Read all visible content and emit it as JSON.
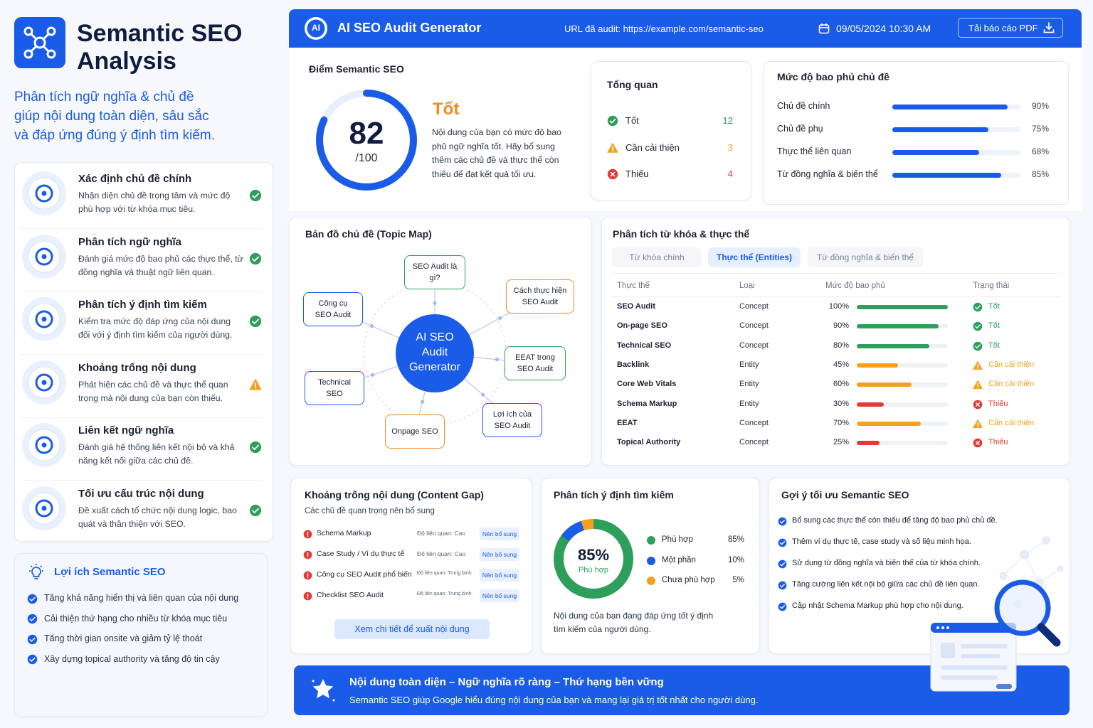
{
  "sidebar": {
    "title": [
      "Semantic SEO",
      "Analysis"
    ],
    "tagline": [
      "Phân tích ngữ nghĩa & chủ đề",
      "giúp nội dung toàn diện, sâu sắc",
      "và đáp ứng đúng ý định tìm kiếm."
    ],
    "features": [
      {
        "title": "Xác định chủ đề chính",
        "description": "Nhận diện chủ đề trọng tâm và mức độ phù hợp với từ khóa mục tiêu.",
        "status": "ok"
      },
      {
        "title": "Phân tích ngữ nghĩa",
        "description": "Đánh giá mức độ bao phủ các thực thể, từ đồng nghĩa và thuật ngữ liên quan.",
        "status": "ok"
      },
      {
        "title": "Phân tích ý định tìm kiếm",
        "description": "Kiểm tra mức độ đáp ứng của nội dung đối với ý định tìm kiếm của người dùng.",
        "status": "ok"
      },
      {
        "title": "Khoảng trống nội dung",
        "description": "Phát hiện các chủ đề và thực thể quan trọng mà nội dung của bạn còn thiếu.",
        "status": "warn"
      },
      {
        "title": "Liên kết ngữ nghĩa",
        "description": "Đánh giá hệ thống liên kết nội bộ và khả năng kết nối giữa các chủ đề.",
        "status": "ok"
      },
      {
        "title": "Tối ưu cấu trúc nội dung",
        "description": "Đề xuất cách tổ chức nội dung logic, bao quát và thân thiện với SEO.",
        "status": "ok"
      }
    ],
    "benefits": {
      "title": "Lợi ích Semantic SEO",
      "items": [
        "Tăng khả năng hiển thị và liên quan của nội dung",
        "Cải thiện thứ hạng cho nhiều từ khóa mục tiêu",
        "Tăng thời gian onsite và giảm tỷ lệ thoát",
        "Xây dựng topical authority và tăng độ tin cậy"
      ]
    }
  },
  "header": {
    "logo": "AI",
    "title": "AI SEO Audit Generator",
    "url_label": "URL đã audit: https://example.com/semantic-seo",
    "datetime": "09/05/2024 10:30 AM",
    "download_button": "Tải báo cáo PDF"
  },
  "score_card": {
    "title": "Điểm Semantic SEO",
    "score": 82,
    "score_max": 100,
    "score_max_label": "/100",
    "rating": "Tốt",
    "description": "Nội dung của bạn có mức độ bao phủ ngữ nghĩa tốt. Hãy bổ sung thêm các chủ đề và thực thể còn thiếu để đạt kết quả tối ưu."
  },
  "overview": {
    "title": "Tổng quan",
    "items": [
      {
        "label": "Tốt",
        "count": 12,
        "status": "ok"
      },
      {
        "label": "Cần cải thiện",
        "count": 3,
        "status": "warn"
      },
      {
        "label": "Thiếu",
        "count": 4,
        "status": "bad"
      }
    ]
  },
  "coverage": {
    "title": "Mức độ bao phủ chủ đề",
    "color": "#1a5be8",
    "items": [
      {
        "label": "Chủ đề chính",
        "value": 90,
        "value_label": "90%"
      },
      {
        "label": "Chủ đề phụ",
        "value": 75,
        "value_label": "75%"
      },
      {
        "label": "Thực thể liên quan",
        "value": 68,
        "value_label": "68%"
      },
      {
        "label": "Từ đồng nghĩa & biến thể",
        "value": 85,
        "value_label": "85%"
      }
    ]
  },
  "topic_map": {
    "title": "Bản đồ chủ đề (Topic Map)",
    "center": "AI SEO Audit Generator",
    "nodes": [
      {
        "label": "SEO Audit là gì?",
        "color": "#2e9e5b"
      },
      {
        "label": "Cách thực hiện SEO Audit",
        "color": "#f08a24"
      },
      {
        "label": "EEAT trong SEO Audit",
        "color": "#2e9e5b"
      },
      {
        "label": "Lợi ích của SEO Audit",
        "color": "#1a5be8"
      },
      {
        "label": "Onpage SEO",
        "color": "#f08a24"
      },
      {
        "label": "Technical SEO",
        "color": "#1a5be8"
      },
      {
        "label": "Công cụ SEO Audit",
        "color": "#1a5be8"
      }
    ]
  },
  "entities": {
    "title": "Phân tích từ khóa & thực thể",
    "tabs": [
      "Từ khóa chính",
      "Thực thể (Entities)",
      "Từ đồng nghĩa & biến thể"
    ],
    "active_tab": 1,
    "columns": [
      "Thực thể",
      "Loại",
      "Mức độ bao phủ",
      "Trạng thái"
    ],
    "rows": [
      {
        "name": "SEO Audit",
        "type": "Concept",
        "coverage": 100,
        "coverage_label": "100%",
        "status": "ok",
        "status_label": "Tốt"
      },
      {
        "name": "On-page SEO",
        "type": "Concept",
        "coverage": 90,
        "coverage_label": "90%",
        "status": "ok",
        "status_label": "Tốt"
      },
      {
        "name": "Technical SEO",
        "type": "Concept",
        "coverage": 80,
        "coverage_label": "80%",
        "status": "ok",
        "status_label": "Tốt"
      },
      {
        "name": "Backlink",
        "type": "Entity",
        "coverage": 45,
        "coverage_label": "45%",
        "status": "warn",
        "status_label": "Cần cải thiện"
      },
      {
        "name": "Core Web Vitals",
        "type": "Entity",
        "coverage": 60,
        "coverage_label": "60%",
        "status": "warn",
        "status_label": "Cần cải thiện"
      },
      {
        "name": "Schema Markup",
        "type": "Entity",
        "coverage": 30,
        "coverage_label": "30%",
        "status": "bad",
        "status_label": "Thiếu"
      },
      {
        "name": "EEAT",
        "type": "Concept",
        "coverage": 70,
        "coverage_label": "70%",
        "status": "warn",
        "status_label": "Cần cải thiện"
      },
      {
        "name": "Topical Authority",
        "type": "Concept",
        "coverage": 25,
        "coverage_label": "25%",
        "status": "bad",
        "status_label": "Thiếu"
      }
    ]
  },
  "content_gap": {
    "title": "Khoảng trống nội dung (Content Gap)",
    "subtitle": "Các chủ đề quan trọng nên bổ sung",
    "items": [
      {
        "name": "Schema Markup",
        "relevance": "Độ liên quan: Cao",
        "tag": "Nên bổ sung"
      },
      {
        "name": "Case Study / Ví dụ thực tế",
        "relevance": "Độ liên quan: Cao",
        "tag": "Nên bổ sung"
      },
      {
        "name": "Công cụ SEO Audit phổ biến",
        "relevance": "Độ liên quan: Trung bình",
        "tag": "Nên bổ sung"
      },
      {
        "name": "Checklist SEO Audit",
        "relevance": "Độ liên quan: Trung bình",
        "tag": "Nên bổ sung"
      }
    ],
    "button": "Xem chi tiết để xuất nội dung"
  },
  "intent": {
    "title": "Phân tích ý định tìm kiếm",
    "segments": [
      {
        "name": "Phù hợp",
        "value": 85,
        "value_label": "85%",
        "color": "#2e9e5b"
      },
      {
        "name": "Một phần",
        "value": 10,
        "value_label": "10%",
        "color": "#1a5be8"
      },
      {
        "name": "Chưa phù hợp",
        "value": 5,
        "value_label": "5%",
        "color": "#f5a020"
      }
    ],
    "note": "Nội dung của bạn đang đáp ứng tốt ý định tìm kiếm của người dùng."
  },
  "suggestions": {
    "title": "Gợi ý tối ưu Semantic SEO",
    "items": [
      "Bổ sung các thực thể còn thiếu để tăng độ bao phủ chủ đề.",
      "Thêm ví dụ thực tế, case study và số liệu minh họa.",
      "Sử dụng từ đồng nghĩa và biến thể của từ khóa chính.",
      "Tăng cường liên kết nội bộ giữa các chủ đề liên quan.",
      "Cập nhật Schema Markup phù hợp cho nội dung."
    ]
  },
  "footer": {
    "title": "Nội dung toàn diện – Ngữ nghĩa rõ ràng – Thứ hạng bền vững",
    "text": "Semantic SEO giúp Google hiểu đúng nội dung của bạn và mang lại giá trị tốt nhất cho người dùng."
  }
}
